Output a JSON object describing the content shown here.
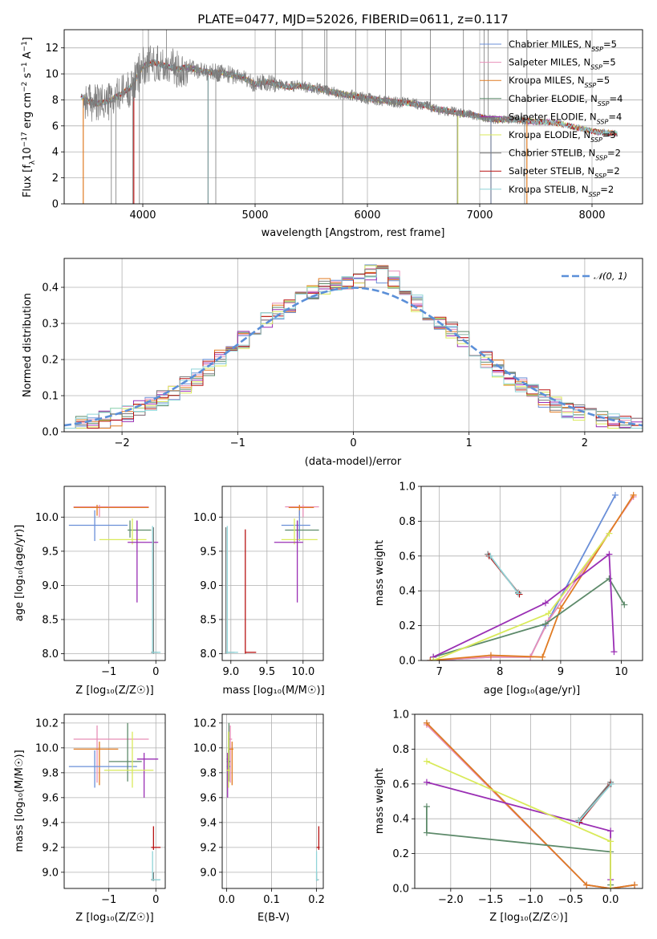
{
  "colors": {
    "Chabrier MILES": "#6a8fd8",
    "Salpeter MILES": "#e88fb8",
    "Kroupa MILES": "#e07b22",
    "Chabrier ELODIE": "#5d8a6a",
    "Salpeter ELODIE": "#9a2fb4",
    "Kroupa ELODIE": "#d9ea5a",
    "Chabrier STELIB": "#7c7c7c",
    "Salpeter STELIB": "#b81414",
    "Kroupa STELIB": "#8fd4d8",
    "normal": "#5b8fd8"
  },
  "chart_data": [
    {
      "id": "spectrum",
      "type": "line",
      "title": "PLATE=0477, MJD=52026, FIBERID=0611, z=0.117",
      "xlabel": "wavelength [Angstrom, rest frame]",
      "ylabel_main": "Flux [f",
      "ylabel_sub": "λ",
      "ylabel_rest": "10",
      "ylabel_exp": "−17",
      "ylabel_tail": " erg cm",
      "ylabel_exp2": "−2",
      "ylabel_tail2": " s",
      "ylabel_exp3": "−1",
      "ylabel_tail3": " A",
      "ylabel_exp4": "−1",
      "ylabel_end": "]",
      "xlim": [
        3300,
        8450
      ],
      "ylim": [
        0,
        13.4
      ],
      "xticks": [
        4000,
        5000,
        6000,
        7000,
        8000
      ],
      "yticks": [
        0,
        2,
        4,
        6,
        8,
        10,
        12
      ],
      "legend_position": "top-right",
      "legend": [
        {
          "name": "Chabrier MILES",
          "nssp": "5"
        },
        {
          "name": "Salpeter MILES",
          "nssp": "5"
        },
        {
          "name": "Kroupa MILES",
          "nssp": "5"
        },
        {
          "name": "Chabrier ELODIE",
          "nssp": "4"
        },
        {
          "name": "Salpeter ELODIE",
          "nssp": "4"
        },
        {
          "name": "Kroupa ELODIE",
          "nssp": "3"
        },
        {
          "name": "Chabrier STELIB",
          "nssp": "2"
        },
        {
          "name": "Salpeter STELIB",
          "nssp": "2"
        },
        {
          "name": "Kroupa STELIB",
          "nssp": "2"
        }
      ],
      "legend_label_prefix": ", N",
      "legend_label_sub": "SSP",
      "legend_label_eq": "=",
      "continuum": [
        [
          3450,
          8.3
        ],
        [
          3500,
          7.9
        ],
        [
          3600,
          7.7
        ],
        [
          3700,
          7.9
        ],
        [
          3800,
          8.4
        ],
        [
          3900,
          9.0
        ],
        [
          4000,
          10.6
        ],
        [
          4100,
          10.9
        ],
        [
          4200,
          10.6
        ],
        [
          4300,
          10.4
        ],
        [
          4400,
          10.5
        ],
        [
          4500,
          10.3
        ],
        [
          4600,
          10.1
        ],
        [
          4700,
          10.1
        ],
        [
          4800,
          9.9
        ],
        [
          4900,
          9.7
        ],
        [
          5000,
          9.2
        ],
        [
          5100,
          9.4
        ],
        [
          5200,
          9.2
        ],
        [
          5300,
          9.0
        ],
        [
          5400,
          9.1
        ],
        [
          5500,
          8.9
        ],
        [
          5600,
          8.8
        ],
        [
          5700,
          8.6
        ],
        [
          5800,
          8.4
        ],
        [
          5900,
          8.3
        ],
        [
          6000,
          8.1
        ],
        [
          6100,
          8.0
        ],
        [
          6200,
          7.9
        ],
        [
          6300,
          7.8
        ],
        [
          6400,
          7.7
        ],
        [
          6500,
          7.6
        ],
        [
          6600,
          7.3
        ],
        [
          6700,
          7.2
        ],
        [
          6800,
          7.0
        ],
        [
          6900,
          6.9
        ],
        [
          7000,
          6.7
        ],
        [
          7100,
          6.5
        ],
        [
          7200,
          6.5
        ],
        [
          7300,
          6.5
        ],
        [
          7400,
          6.4
        ],
        [
          7500,
          6.3
        ],
        [
          7600,
          6.3
        ],
        [
          7700,
          6.2
        ],
        [
          7800,
          6.0
        ],
        [
          7900,
          5.8
        ],
        [
          8000,
          5.6
        ],
        [
          8100,
          5.5
        ],
        [
          8200,
          5.4
        ],
        [
          8230,
          5.4
        ]
      ],
      "spikes_up": [
        4050,
        4210,
        5180,
        5420,
        5620,
        5640,
        5895,
        6160,
        6300,
        6560,
        6855,
        7040,
        7075,
        7250,
        7420
      ],
      "spikes_down": [
        3720,
        3760,
        3910,
        3970,
        4580,
        4650,
        5780,
        6800,
        7100,
        7400
      ],
      "model_drops": [
        {
          "x": 3920,
          "model": "Salpeter STELIB"
        },
        {
          "x": 3470,
          "model": "Kroupa MILES"
        },
        {
          "x": 4582,
          "model": "Kroupa STELIB"
        },
        {
          "x": 6805,
          "model": "Kroupa ELODIE"
        },
        {
          "x": 7100,
          "model": "Chabrier MILES"
        },
        {
          "x": 7420,
          "model": "Kroupa MILES"
        }
      ]
    },
    {
      "id": "residuals",
      "type": "bar",
      "xlabel": "(data-model)/error",
      "ylabel": "Normed distribution",
      "xlim": [
        -2.5,
        2.5
      ],
      "ylim": [
        0,
        0.48
      ],
      "xticks": [
        -2,
        -1,
        0,
        1,
        2
      ],
      "yticks": [
        0.0,
        0.1,
        0.2,
        0.3,
        0.4
      ],
      "ytick_labels": [
        "0.0",
        "0.1",
        "0.2",
        "0.3",
        "0.4"
      ],
      "xtick_labels": [
        "−2",
        "−1",
        "0",
        "1",
        "2"
      ],
      "legend_position": "top-right",
      "legend_label": "𝒩(0, 1)",
      "bin_width": 0.1,
      "bin_start": -2.5
    },
    {
      "id": "z-age",
      "type": "scatter",
      "xlabel": "Z [log₁₀(Z/Z☉)]",
      "ylabel": "age  [log₁₀(age/yr)]",
      "xlim": [
        -1.95,
        0.2
      ],
      "ylim": [
        7.9,
        10.45
      ],
      "xticks": [
        -1,
        0
      ],
      "xtick_labels": [
        "−1",
        "0"
      ],
      "yticks": [
        8.0,
        8.5,
        9.0,
        9.5,
        10.0
      ],
      "ytick_labels": [
        "8.0",
        "8.5",
        "9.0",
        "9.5",
        "10.0"
      ]
    },
    {
      "id": "mass-age",
      "type": "scatter",
      "xlabel": "mass [log₁₀(M/M☉)]",
      "ylabel": "",
      "xlim": [
        8.88,
        10.28
      ],
      "ylim": [
        7.9,
        10.45
      ],
      "xticks": [
        9.0,
        9.5,
        10.0
      ],
      "xtick_labels": [
        "9.0",
        "9.5",
        "10.0"
      ],
      "yticks": [
        8.0,
        8.5,
        9.0,
        9.5,
        10.0
      ],
      "ytick_labels": [
        "8.0",
        "8.5",
        "9.0",
        "9.5",
        "10.0"
      ]
    },
    {
      "id": "age-weight",
      "type": "line",
      "xlabel": "age  [log₁₀(age/yr)]",
      "ylabel": "mass weight",
      "xlim": [
        6.7,
        10.35
      ],
      "ylim": [
        0,
        1.0
      ],
      "xticks": [
        7,
        8,
        9,
        10
      ],
      "xtick_labels": [
        "7",
        "8",
        "9",
        "10"
      ],
      "yticks": [
        0.0,
        0.2,
        0.4,
        0.6,
        0.8,
        1.0
      ],
      "ytick_labels": [
        "0.0",
        "0.2",
        "0.4",
        "0.6",
        "0.8",
        "1.0"
      ],
      "series": [
        {
          "name": "Chabrier MILES",
          "points": [
            [
              6.85,
              0.0
            ],
            [
              7.85,
              0.02
            ],
            [
              8.5,
              0.02
            ],
            [
              8.75,
              0.2
            ],
            [
              9.9,
              0.95
            ]
          ]
        },
        {
          "name": "Salpeter MILES",
          "points": [
            [
              6.85,
              0.0
            ],
            [
              7.85,
              0.02
            ],
            [
              8.5,
              0.02
            ],
            [
              8.8,
              0.23
            ],
            [
              10.2,
              0.94
            ]
          ]
        },
        {
          "name": "Kroupa MILES",
          "points": [
            [
              6.85,
              0.0
            ],
            [
              7.85,
              0.03
            ],
            [
              8.7,
              0.02
            ],
            [
              9.0,
              0.3
            ],
            [
              10.2,
              0.95
            ]
          ]
        },
        {
          "name": "Chabrier ELODIE",
          "points": [
            [
              6.9,
              0.02
            ],
            [
              8.75,
              0.21
            ],
            [
              9.8,
              0.47
            ],
            [
              10.05,
              0.32
            ]
          ]
        },
        {
          "name": "Salpeter ELODIE",
          "points": [
            [
              6.9,
              0.02
            ],
            [
              8.75,
              0.33
            ],
            [
              9.8,
              0.61
            ],
            [
              9.88,
              0.05
            ]
          ]
        },
        {
          "name": "Kroupa ELODIE",
          "points": [
            [
              6.9,
              0.0
            ],
            [
              8.8,
              0.27
            ],
            [
              9.8,
              0.73
            ]
          ]
        },
        {
          "name": "Chabrier STELIB",
          "points": [
            [
              7.8,
              0.61
            ],
            [
              8.3,
              0.39
            ]
          ]
        },
        {
          "name": "Salpeter STELIB",
          "points": [
            [
              7.82,
              0.6
            ],
            [
              8.32,
              0.38
            ]
          ]
        },
        {
          "name": "Kroupa STELIB",
          "points": [
            [
              7.84,
              0.6
            ],
            [
              8.3,
              0.385
            ]
          ]
        }
      ]
    },
    {
      "id": "z-mass",
      "type": "scatter",
      "xlabel": "Z [log₁₀(Z/Z☉)]",
      "ylabel": "mass [log₁₀(M/M☉)]",
      "xlim": [
        -1.95,
        0.2
      ],
      "ylim": [
        8.87,
        10.27
      ],
      "xticks": [
        -1,
        0
      ],
      "xtick_labels": [
        "−1",
        "0"
      ],
      "yticks": [
        9.0,
        9.2,
        9.4,
        9.6,
        9.8,
        10.0,
        10.2
      ],
      "ytick_labels": [
        "9.0",
        "9.2",
        "9.4",
        "9.6",
        "9.8",
        "10.0",
        "10.2"
      ]
    },
    {
      "id": "ebv-mass",
      "type": "scatter",
      "xlabel": "E(B-V)",
      "ylabel": "",
      "xlim": [
        -0.01,
        0.215
      ],
      "ylim": [
        8.87,
        10.27
      ],
      "xticks": [
        0.0,
        0.1,
        0.2
      ],
      "xtick_labels": [
        "0.0",
        "0.1",
        "0.2"
      ],
      "yticks": [
        9.0,
        9.2,
        9.4,
        9.6,
        9.8,
        10.0,
        10.2
      ],
      "ytick_labels": [
        "9.0",
        "9.2",
        "9.4",
        "9.6",
        "9.8",
        "10.0",
        "10.2"
      ]
    },
    {
      "id": "z-weight",
      "type": "line",
      "xlabel": "Z [log₁₀(Z/Z☉)]",
      "ylabel": "mass weight",
      "xlim": [
        -2.45,
        0.4
      ],
      "ylim": [
        0,
        1.0
      ],
      "xticks": [
        -2.0,
        -1.5,
        -1.0,
        -0.5,
        0.0
      ],
      "xtick_labels": [
        "−2.0",
        "−1.5",
        "−1.0",
        "−0.5",
        "0.0"
      ],
      "yticks": [
        0.0,
        0.2,
        0.4,
        0.6,
        0.8,
        1.0
      ],
      "ytick_labels": [
        "0.0",
        "0.2",
        "0.4",
        "0.6",
        "0.8",
        "1.0"
      ],
      "series": [
        {
          "name": "Chabrier MILES",
          "points": [
            [
              -2.3,
              0.95
            ],
            [
              -0.3,
              0.02
            ],
            [
              0.0,
              0.0
            ],
            [
              0.3,
              0.02
            ]
          ]
        },
        {
          "name": "Salpeter MILES",
          "points": [
            [
              -2.3,
              0.94
            ],
            [
              -0.3,
              0.02
            ],
            [
              0.0,
              0.0
            ],
            [
              0.3,
              0.02
            ]
          ]
        },
        {
          "name": "Kroupa MILES",
          "points": [
            [
              -2.3,
              0.95
            ],
            [
              -0.3,
              0.02
            ],
            [
              0.0,
              0.0
            ],
            [
              0.3,
              0.02
            ]
          ]
        },
        {
          "name": "Chabrier ELODIE",
          "points": [
            [
              -2.3,
              0.47
            ],
            [
              -2.3,
              0.32
            ],
            [
              0.0,
              0.21
            ],
            [
              0.0,
              0.02
            ]
          ]
        },
        {
          "name": "Salpeter ELODIE",
          "points": [
            [
              -2.3,
              0.61
            ],
            [
              0.0,
              0.33
            ],
            [
              0.0,
              0.05
            ]
          ]
        },
        {
          "name": "Kroupa ELODIE",
          "points": [
            [
              -2.3,
              0.73
            ],
            [
              0.0,
              0.27
            ],
            [
              0.0,
              0.0
            ]
          ]
        },
        {
          "name": "Chabrier STELIB",
          "points": [
            [
              0.0,
              0.61
            ],
            [
              -0.4,
              0.39
            ]
          ]
        },
        {
          "name": "Salpeter STELIB",
          "points": [
            [
              0.0,
              0.6
            ],
            [
              -0.39,
              0.38
            ]
          ]
        },
        {
          "name": "Kroupa STELIB",
          "points": [
            [
              0.01,
              0.6
            ],
            [
              -0.4,
              0.385
            ]
          ]
        }
      ]
    }
  ]
}
